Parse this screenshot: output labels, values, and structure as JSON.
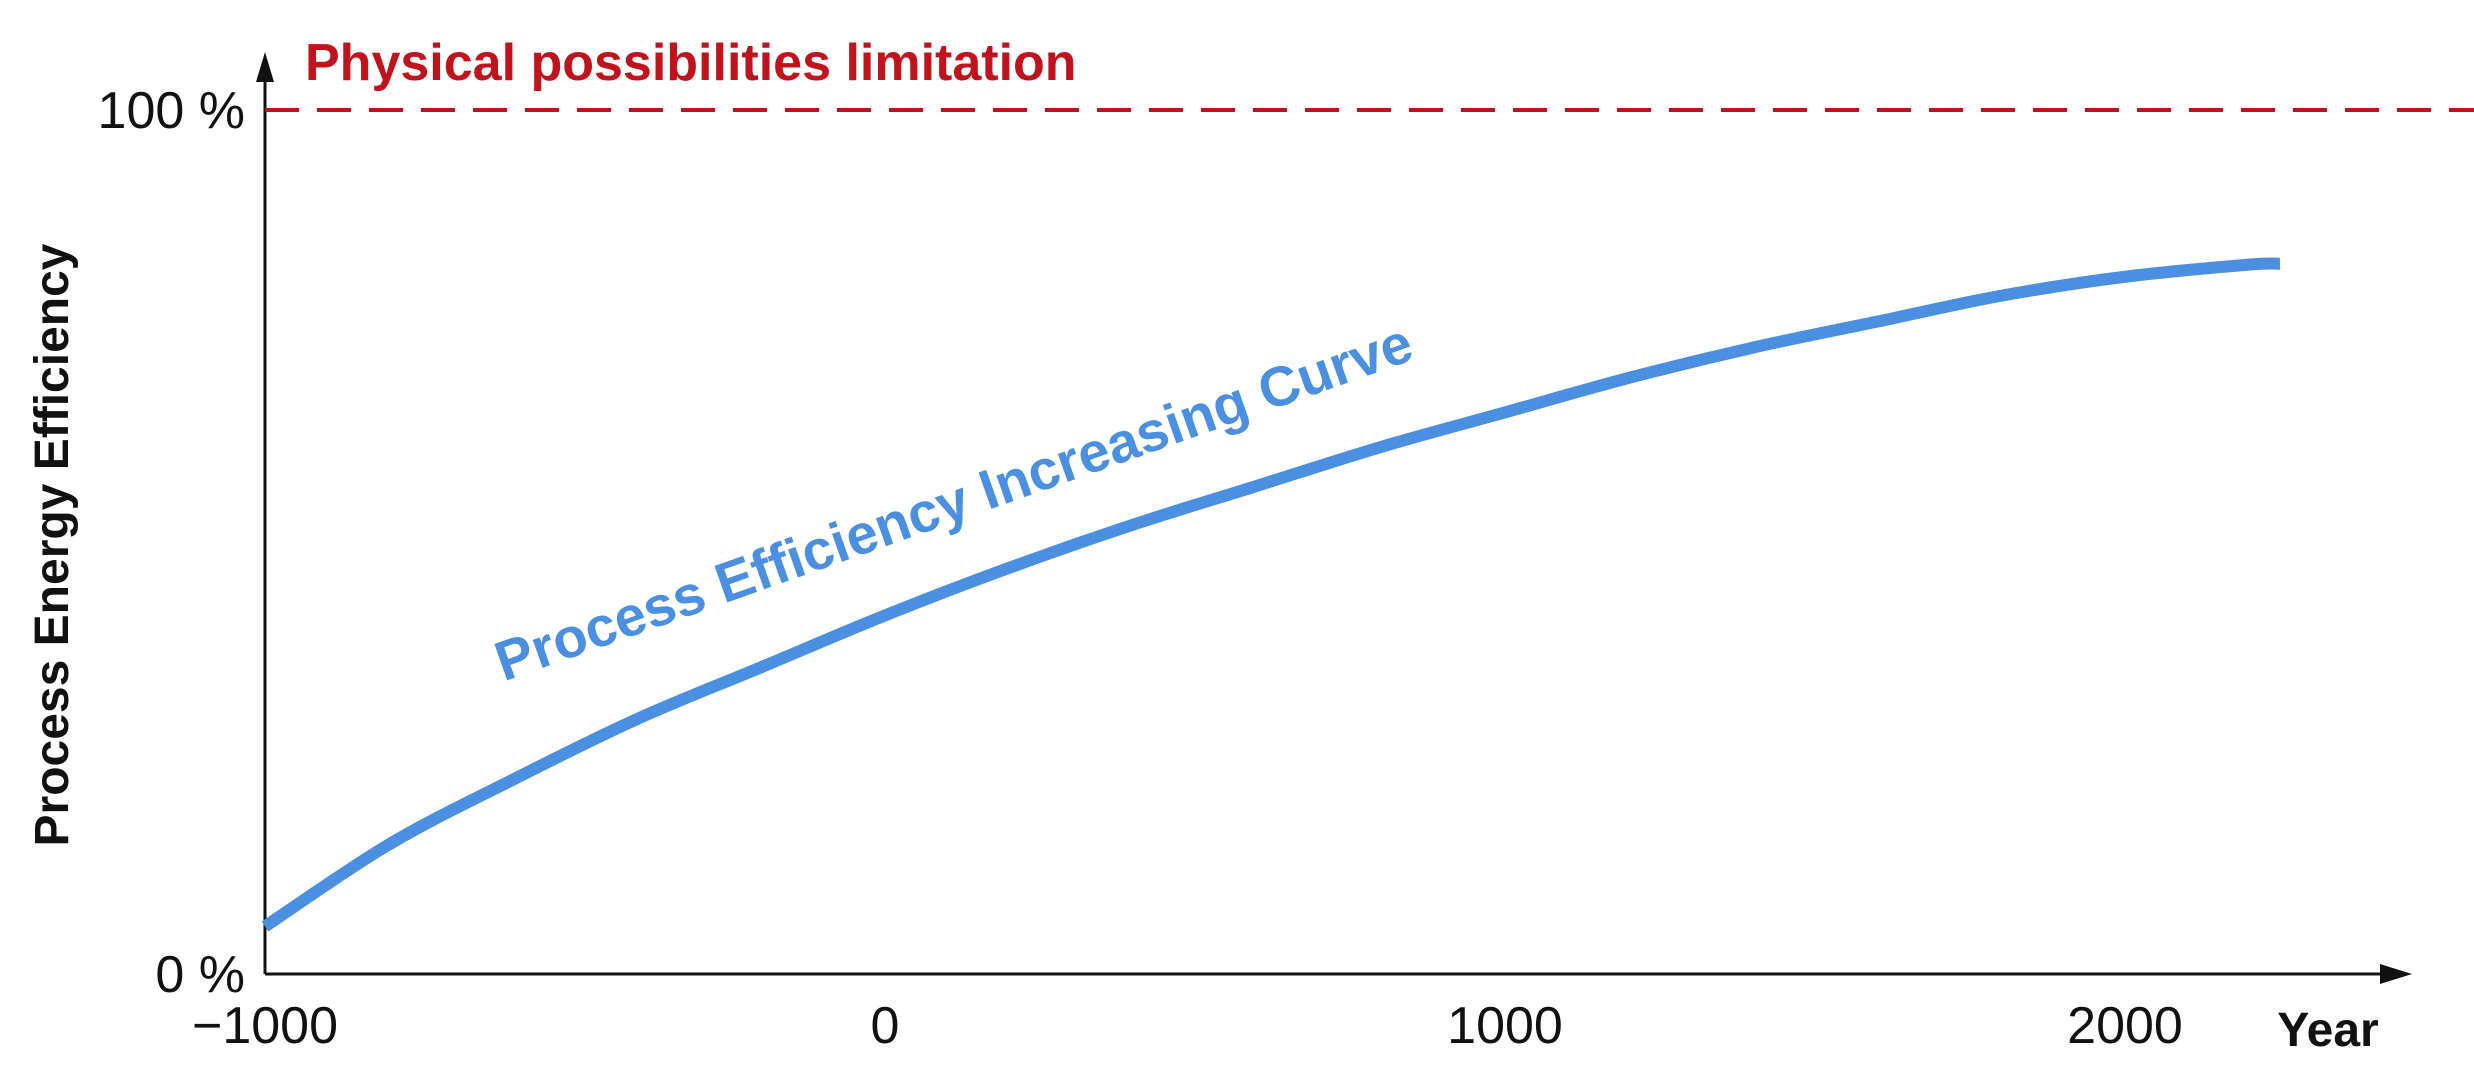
{
  "chart_data": {
    "type": "line",
    "title": "",
    "xlabel": "Year",
    "ylabel": "Process Energy Efficiency",
    "xlim": [
      -1000,
      2250
    ],
    "ylim": [
      0,
      100
    ],
    "x_ticks": [
      {
        "value": -1000,
        "label": "−1000"
      },
      {
        "value": 0,
        "label": "0"
      },
      {
        "value": 1000,
        "label": "1000"
      },
      {
        "value": 2000,
        "label": "2000"
      }
    ],
    "y_ticks": [
      {
        "value": 0,
        "label": "0 %"
      },
      {
        "value": 100,
        "label": "100 %"
      }
    ],
    "series": [
      {
        "name": "Process Efficiency Increasing Curve",
        "color": "#4a8fe0",
        "x": [
          -1000,
          -800,
          -600,
          -400,
          -200,
          0,
          200,
          400,
          600,
          800,
          1000,
          1200,
          1400,
          1600,
          1800,
          2000,
          2200,
          2250
        ],
        "y": [
          5.5,
          15.0,
          22.5,
          29.5,
          35.5,
          41.5,
          47.0,
          52.0,
          56.5,
          61.0,
          65.0,
          69.0,
          72.5,
          75.5,
          78.5,
          80.7,
          82.1,
          82.2
        ]
      }
    ],
    "reference_lines": [
      {
        "y": 100,
        "style": "dashed",
        "color": "#c0131b",
        "label": "Physical possibilities limitation"
      }
    ],
    "annotations": [
      {
        "text": "Process Efficiency Increasing Curve",
        "color": "#4a8fe0"
      }
    ],
    "grid": false,
    "legend": "none"
  }
}
